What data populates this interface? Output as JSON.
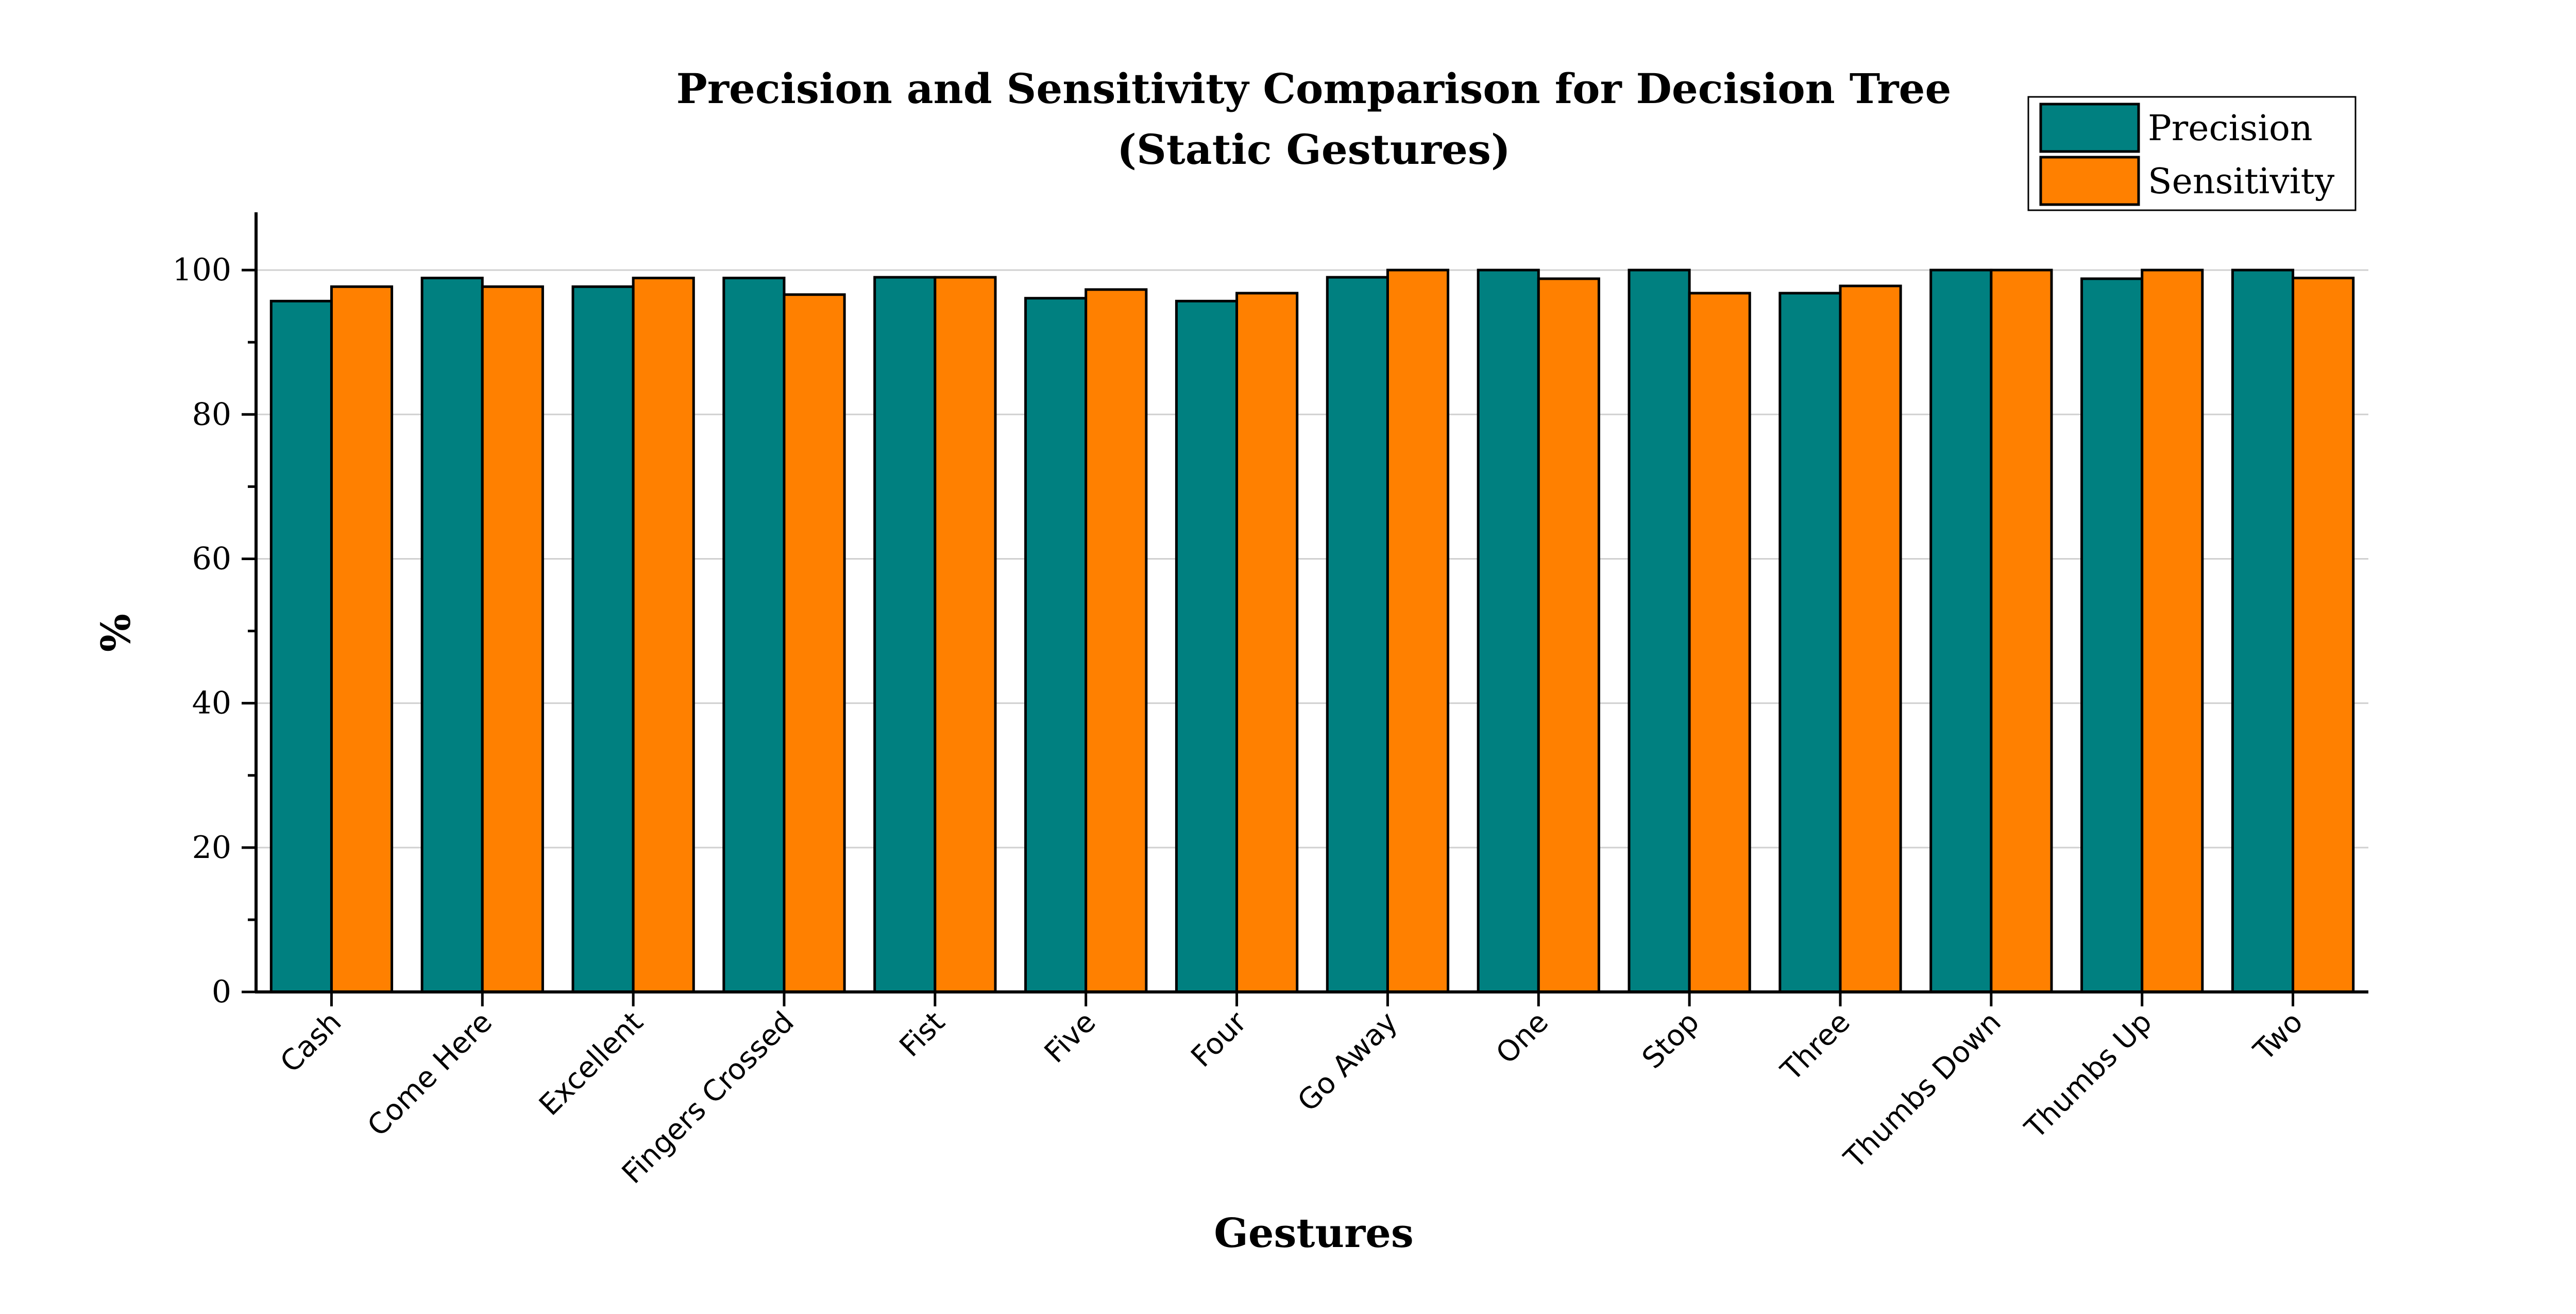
{
  "chart_data": {
    "type": "bar",
    "title": "Precision and Sensitivity Comparison for Decision Tree",
    "subtitle": "(Static Gestures)",
    "xlabel": "Gestures",
    "ylabel": "%",
    "ylim": [
      0,
      108
    ],
    "yticks": [
      "0",
      "20",
      "40",
      "60",
      "80",
      "100"
    ],
    "grid": true,
    "legend_position": "top-right",
    "categories": [
      "Cash",
      "Come Here",
      "Excellent",
      "Fingers Crossed",
      "Fist",
      "Five",
      "Four",
      "Go Away",
      "One",
      "Stop",
      "Three",
      "Thumbs Down",
      "Thumbs Up",
      "Two"
    ],
    "series": [
      {
        "name": "Precision",
        "color": "#008080",
        "values": [
          95.7,
          98.9,
          97.7,
          98.9,
          99.0,
          96.1,
          95.7,
          99.0,
          100,
          100,
          96.8,
          100,
          98.8,
          100
        ]
      },
      {
        "name": "Sensitivity",
        "color": "#ff8000",
        "values": [
          97.7,
          97.7,
          98.9,
          96.6,
          99.0,
          97.3,
          96.8,
          100,
          98.8,
          96.8,
          97.8,
          100,
          100,
          98.9
        ]
      }
    ]
  }
}
